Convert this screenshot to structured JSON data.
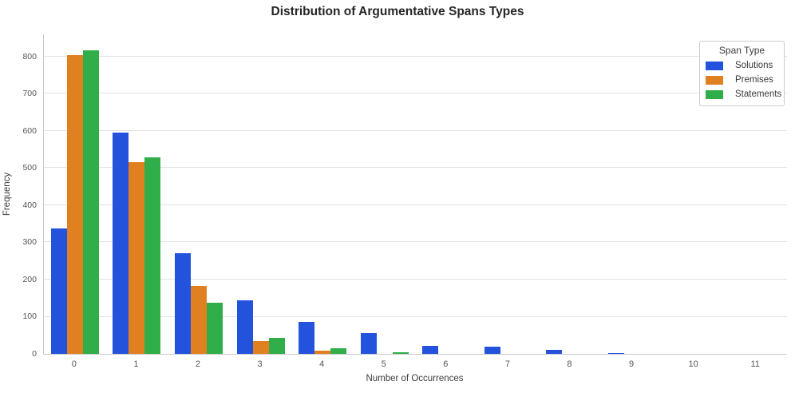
{
  "chart_data": {
    "type": "bar",
    "title": "Distribution of Argumentative Spans Types",
    "xlabel": "Number of Occurrences",
    "ylabel": "Frequency",
    "categories": [
      "0",
      "1",
      "2",
      "3",
      "4",
      "5",
      "6",
      "7",
      "8",
      "9",
      "10",
      "11"
    ],
    "series": [
      {
        "name": "Solutions",
        "color": "#2353dc",
        "values": [
          338,
          596,
          271,
          144,
          85,
          57,
          21,
          20,
          10,
          2,
          0,
          0
        ]
      },
      {
        "name": "Premises",
        "color": "#e08020",
        "values": [
          804,
          517,
          182,
          35,
          8,
          0,
          0,
          0,
          0,
          0,
          0,
          0
        ]
      },
      {
        "name": "Statements",
        "color": "#2fae49",
        "values": [
          818,
          528,
          137,
          42,
          15,
          4,
          0,
          0,
          0,
          0,
          0,
          0
        ]
      }
    ],
    "ylim": [
      0,
      860
    ],
    "yticks": [
      0,
      100,
      200,
      300,
      400,
      500,
      600,
      700,
      800
    ],
    "grid": true,
    "legend": {
      "title": "Span Type",
      "position": "upper right"
    },
    "style": {
      "grid_color": "#e2e2e2",
      "spine_color": "#c9c9c9",
      "tick_color": "#555555",
      "title_color": "#262626"
    }
  }
}
